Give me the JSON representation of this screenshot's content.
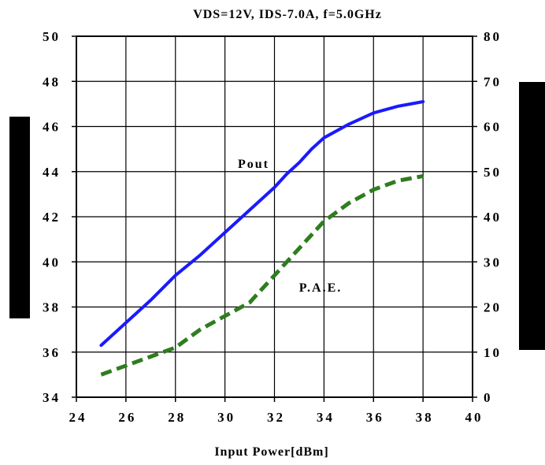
{
  "chart_data": {
    "type": "line",
    "title": "VDS=12V, IDS-7.0A, f=5.0GHz",
    "xlabel": "Input Power[dBm]",
    "ylabel": "",
    "y2label": "",
    "xlim": [
      24,
      40
    ],
    "ylim": [
      34,
      50
    ],
    "y2lim": [
      0,
      80
    ],
    "x_ticks": [
      "24",
      "26",
      "28",
      "30",
      "32",
      "34",
      "36",
      "38",
      "40"
    ],
    "y_ticks": [
      "34",
      "36",
      "38",
      "40",
      "42",
      "44",
      "46",
      "48",
      "50"
    ],
    "y2_ticks": [
      "0",
      "10",
      "20",
      "30",
      "40",
      "50",
      "60",
      "70",
      "80"
    ],
    "grid": true,
    "colors": {
      "pout": "#1a1aff",
      "pae": "#2e7d1e"
    },
    "series": [
      {
        "label": "Pout",
        "axis": "left",
        "x": [
          25,
          26,
          27,
          28,
          29,
          30,
          31,
          32,
          32.5,
          33,
          33.5,
          34,
          35,
          36,
          37,
          38
        ],
        "values": [
          36.3,
          37.3,
          38.3,
          39.4,
          40.3,
          41.3,
          42.3,
          43.3,
          43.9,
          44.4,
          45.0,
          45.5,
          46.1,
          46.6,
          46.9,
          47.1
        ]
      },
      {
        "label": "P.A.E.",
        "axis": "right",
        "x": [
          25,
          26,
          27,
          28,
          29,
          30,
          31,
          32,
          33,
          34,
          35,
          36,
          37,
          38
        ],
        "values": [
          5,
          7,
          9,
          11,
          15,
          18,
          21,
          27,
          33,
          39,
          43,
          46,
          48,
          49
        ]
      }
    ]
  }
}
